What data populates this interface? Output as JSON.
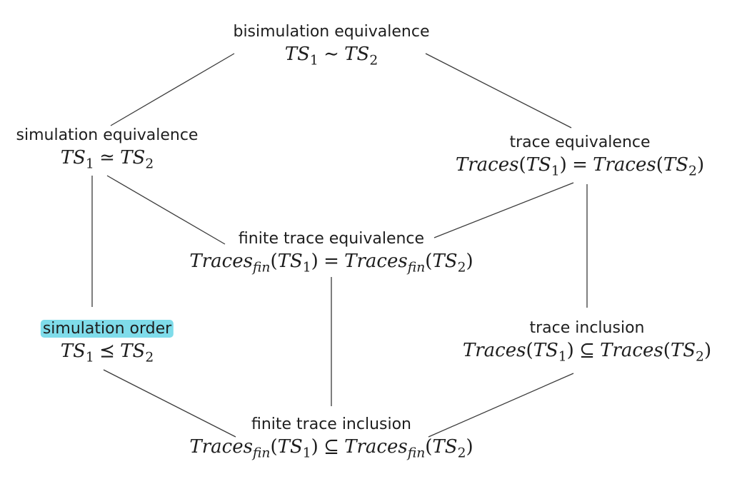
{
  "nodes": {
    "bisimulation": {
      "label": "bisimulation equivalence",
      "formula": {
        "lhs": "TS",
        "lhs_sub": "1",
        "rel": "∼",
        "rhs": "TS",
        "rhs_sub": "2"
      }
    },
    "simulation_equivalence": {
      "label": "simulation equivalence",
      "formula": {
        "lhs": "TS",
        "lhs_sub": "1",
        "rel": "≃",
        "rhs": "TS",
        "rhs_sub": "2"
      }
    },
    "trace_equivalence": {
      "label": "trace equivalence",
      "formula": {
        "lhs_fn": "Traces",
        "lhs_arg": "TS",
        "lhs_arg_sub": "1",
        "rel": "=",
        "rhs_fn": "Traces",
        "rhs_arg": "TS",
        "rhs_arg_sub": "2"
      }
    },
    "finite_trace_equivalence": {
      "label": "finite trace equivalence",
      "formula": {
        "lhs_fn": "Traces",
        "lhs_fn_sub": "fin",
        "lhs_arg": "TS",
        "lhs_arg_sub": "1",
        "rel": "=",
        "rhs_fn": "Traces",
        "rhs_fn_sub": "fin",
        "rhs_arg": "TS",
        "rhs_arg_sub": "2"
      }
    },
    "simulation_order": {
      "label": "simulation order",
      "formula": {
        "lhs": "TS",
        "lhs_sub": "1",
        "rel": "⪯",
        "rhs": "TS",
        "rhs_sub": "2"
      }
    },
    "trace_inclusion": {
      "label": "trace inclusion",
      "formula": {
        "lhs_fn": "Traces",
        "lhs_arg": "TS",
        "lhs_arg_sub": "1",
        "rel": "⊆",
        "rhs_fn": "Traces",
        "rhs_arg": "TS",
        "rhs_arg_sub": "2"
      }
    },
    "finite_trace_inclusion": {
      "label": "finite trace inclusion",
      "formula": {
        "lhs_fn": "Traces",
        "lhs_fn_sub": "fin",
        "lhs_arg": "TS",
        "lhs_arg_sub": "1",
        "rel": "⊆",
        "rhs_fn": "Traces",
        "rhs_fn_sub": "fin",
        "rhs_arg": "TS",
        "rhs_arg_sub": "2"
      }
    }
  },
  "edges": [
    {
      "from": "bisimulation",
      "to": "simulation_equivalence"
    },
    {
      "from": "bisimulation",
      "to": "trace_equivalence"
    },
    {
      "from": "simulation_equivalence",
      "to": "finite_trace_equivalence"
    },
    {
      "from": "trace_equivalence",
      "to": "finite_trace_equivalence"
    },
    {
      "from": "simulation_equivalence",
      "to": "simulation_order"
    },
    {
      "from": "trace_equivalence",
      "to": "trace_inclusion"
    },
    {
      "from": "finite_trace_equivalence",
      "to": "finite_trace_inclusion"
    },
    {
      "from": "simulation_order",
      "to": "finite_trace_inclusion"
    },
    {
      "from": "trace_inclusion",
      "to": "finite_trace_inclusion"
    }
  ],
  "highlight": {
    "node": "simulation_order",
    "color": "#7fdcea"
  }
}
